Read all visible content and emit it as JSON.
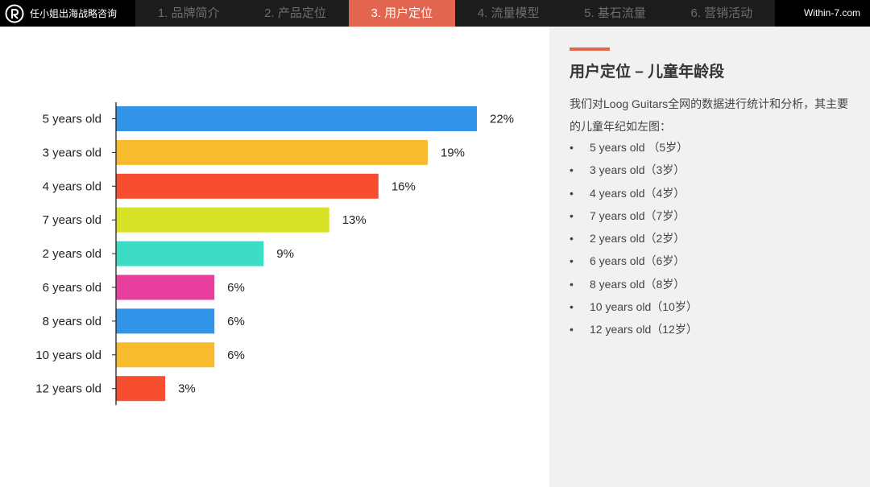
{
  "header": {
    "brand": "任小姐出海战略咨询",
    "nav": [
      {
        "label": "1. 品牌简介",
        "active": false
      },
      {
        "label": "2. 产品定位",
        "active": false
      },
      {
        "label": "3. 用户定位",
        "active": true
      },
      {
        "label": "4. 流量模型",
        "active": false
      },
      {
        "label": "5. 基石流量",
        "active": false
      },
      {
        "label": "6. 营销活动",
        "active": false
      }
    ],
    "site": "Within-7.com"
  },
  "panel": {
    "title": "用户定位 – 儿童年龄段",
    "description": "我们对Loog Guitars全网的数据进行统计和分析，其主要的儿童年纪如左图：",
    "items": [
      "5 years old （5岁）",
      "3 years old（3岁）",
      "4 years old（4岁）",
      "7 years old（7岁）",
      "2 years old（2岁）",
      "6 years old（6岁）",
      "8 years old（8岁）",
      "10 years old（10岁）",
      "12 years old（12岁）"
    ]
  },
  "colors": {
    "accent": "#e2654f",
    "blue": "#3194e8",
    "yellow": "#f7bb2d",
    "red": "#f64e2e",
    "lime": "#d7e226",
    "teal": "#3ddcc4",
    "pink": "#e83e9e"
  },
  "chart_data": {
    "type": "bar",
    "orientation": "horizontal",
    "categories": [
      "5 years old",
      "3 years old",
      "4 years old",
      "7 years old",
      "2 years old",
      "6 years old",
      "8 years old",
      "10 years old",
      "12 years old"
    ],
    "values": [
      22,
      19,
      16,
      13,
      9,
      6,
      6,
      6,
      3
    ],
    "labels": [
      "22%",
      "19%",
      "16%",
      "13%",
      "9%",
      "6%",
      "6%",
      "6%",
      "3%"
    ],
    "bar_colors": [
      "#3194e8",
      "#f7bb2d",
      "#f64e2e",
      "#d7e226",
      "#3ddcc4",
      "#e83e9e",
      "#3194e8",
      "#f7bb2d",
      "#f64e2e"
    ],
    "xlim": [
      0,
      22
    ],
    "grid": false,
    "legend": false
  }
}
